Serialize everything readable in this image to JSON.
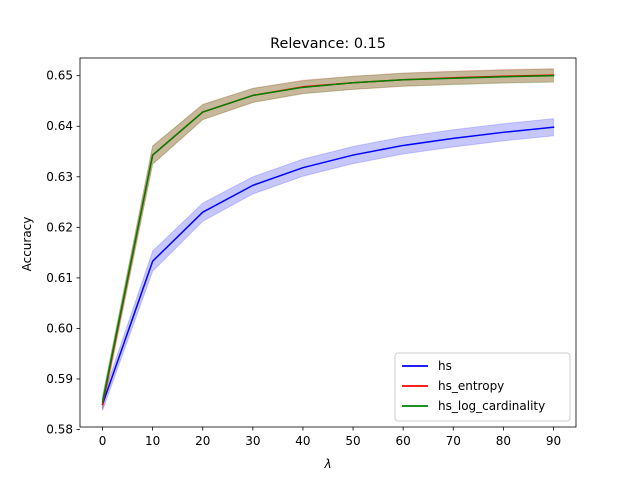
{
  "chart_data": {
    "type": "line",
    "title": "Relevance: 0.15",
    "xlabel": "λ",
    "ylabel": "Accuracy",
    "x": [
      0,
      10,
      20,
      30,
      40,
      50,
      60,
      70,
      80,
      90
    ],
    "xticks": [
      "0",
      "10",
      "20",
      "30",
      "40",
      "50",
      "60",
      "70",
      "80",
      "90"
    ],
    "yticks": [
      "0.58",
      "0.59",
      "0.60",
      "0.61",
      "0.62",
      "0.63",
      "0.64",
      "0.65"
    ],
    "xlim": [
      -4.5,
      94.5
    ],
    "ylim": [
      0.5805,
      0.6535
    ],
    "grid": false,
    "legend_position": "lower right",
    "series": [
      {
        "name": "hs",
        "color": "#0000ff",
        "band_color": "#0000ff",
        "values": [
          0.585,
          0.6133,
          0.623,
          0.6283,
          0.6318,
          0.6343,
          0.6362,
          0.6376,
          0.6388,
          0.6398
        ],
        "band_halfwidth": [
          0.0012,
          0.002,
          0.0018,
          0.0017,
          0.0017,
          0.0017,
          0.0017,
          0.0017,
          0.0017,
          0.0017
        ]
      },
      {
        "name": "hs_entropy",
        "color": "#ff0000",
        "band_color": "#ff0000",
        "values": [
          0.585,
          0.6343,
          0.6428,
          0.6461,
          0.6478,
          0.6486,
          0.6492,
          0.6496,
          0.6499,
          0.6501
        ],
        "band_halfwidth": [
          0.0012,
          0.0018,
          0.0015,
          0.0014,
          0.0013,
          0.0013,
          0.0013,
          0.0013,
          0.0013,
          0.0013
        ]
      },
      {
        "name": "hs_log_cardinality",
        "color": "#008000",
        "band_color": "#008000",
        "values": [
          0.5855,
          0.6343,
          0.6428,
          0.6461,
          0.6477,
          0.6486,
          0.6492,
          0.6495,
          0.6498,
          0.65
        ],
        "band_halfwidth": [
          0.0012,
          0.0018,
          0.0015,
          0.0014,
          0.0013,
          0.0013,
          0.0013,
          0.0013,
          0.0013,
          0.0013
        ]
      }
    ]
  }
}
